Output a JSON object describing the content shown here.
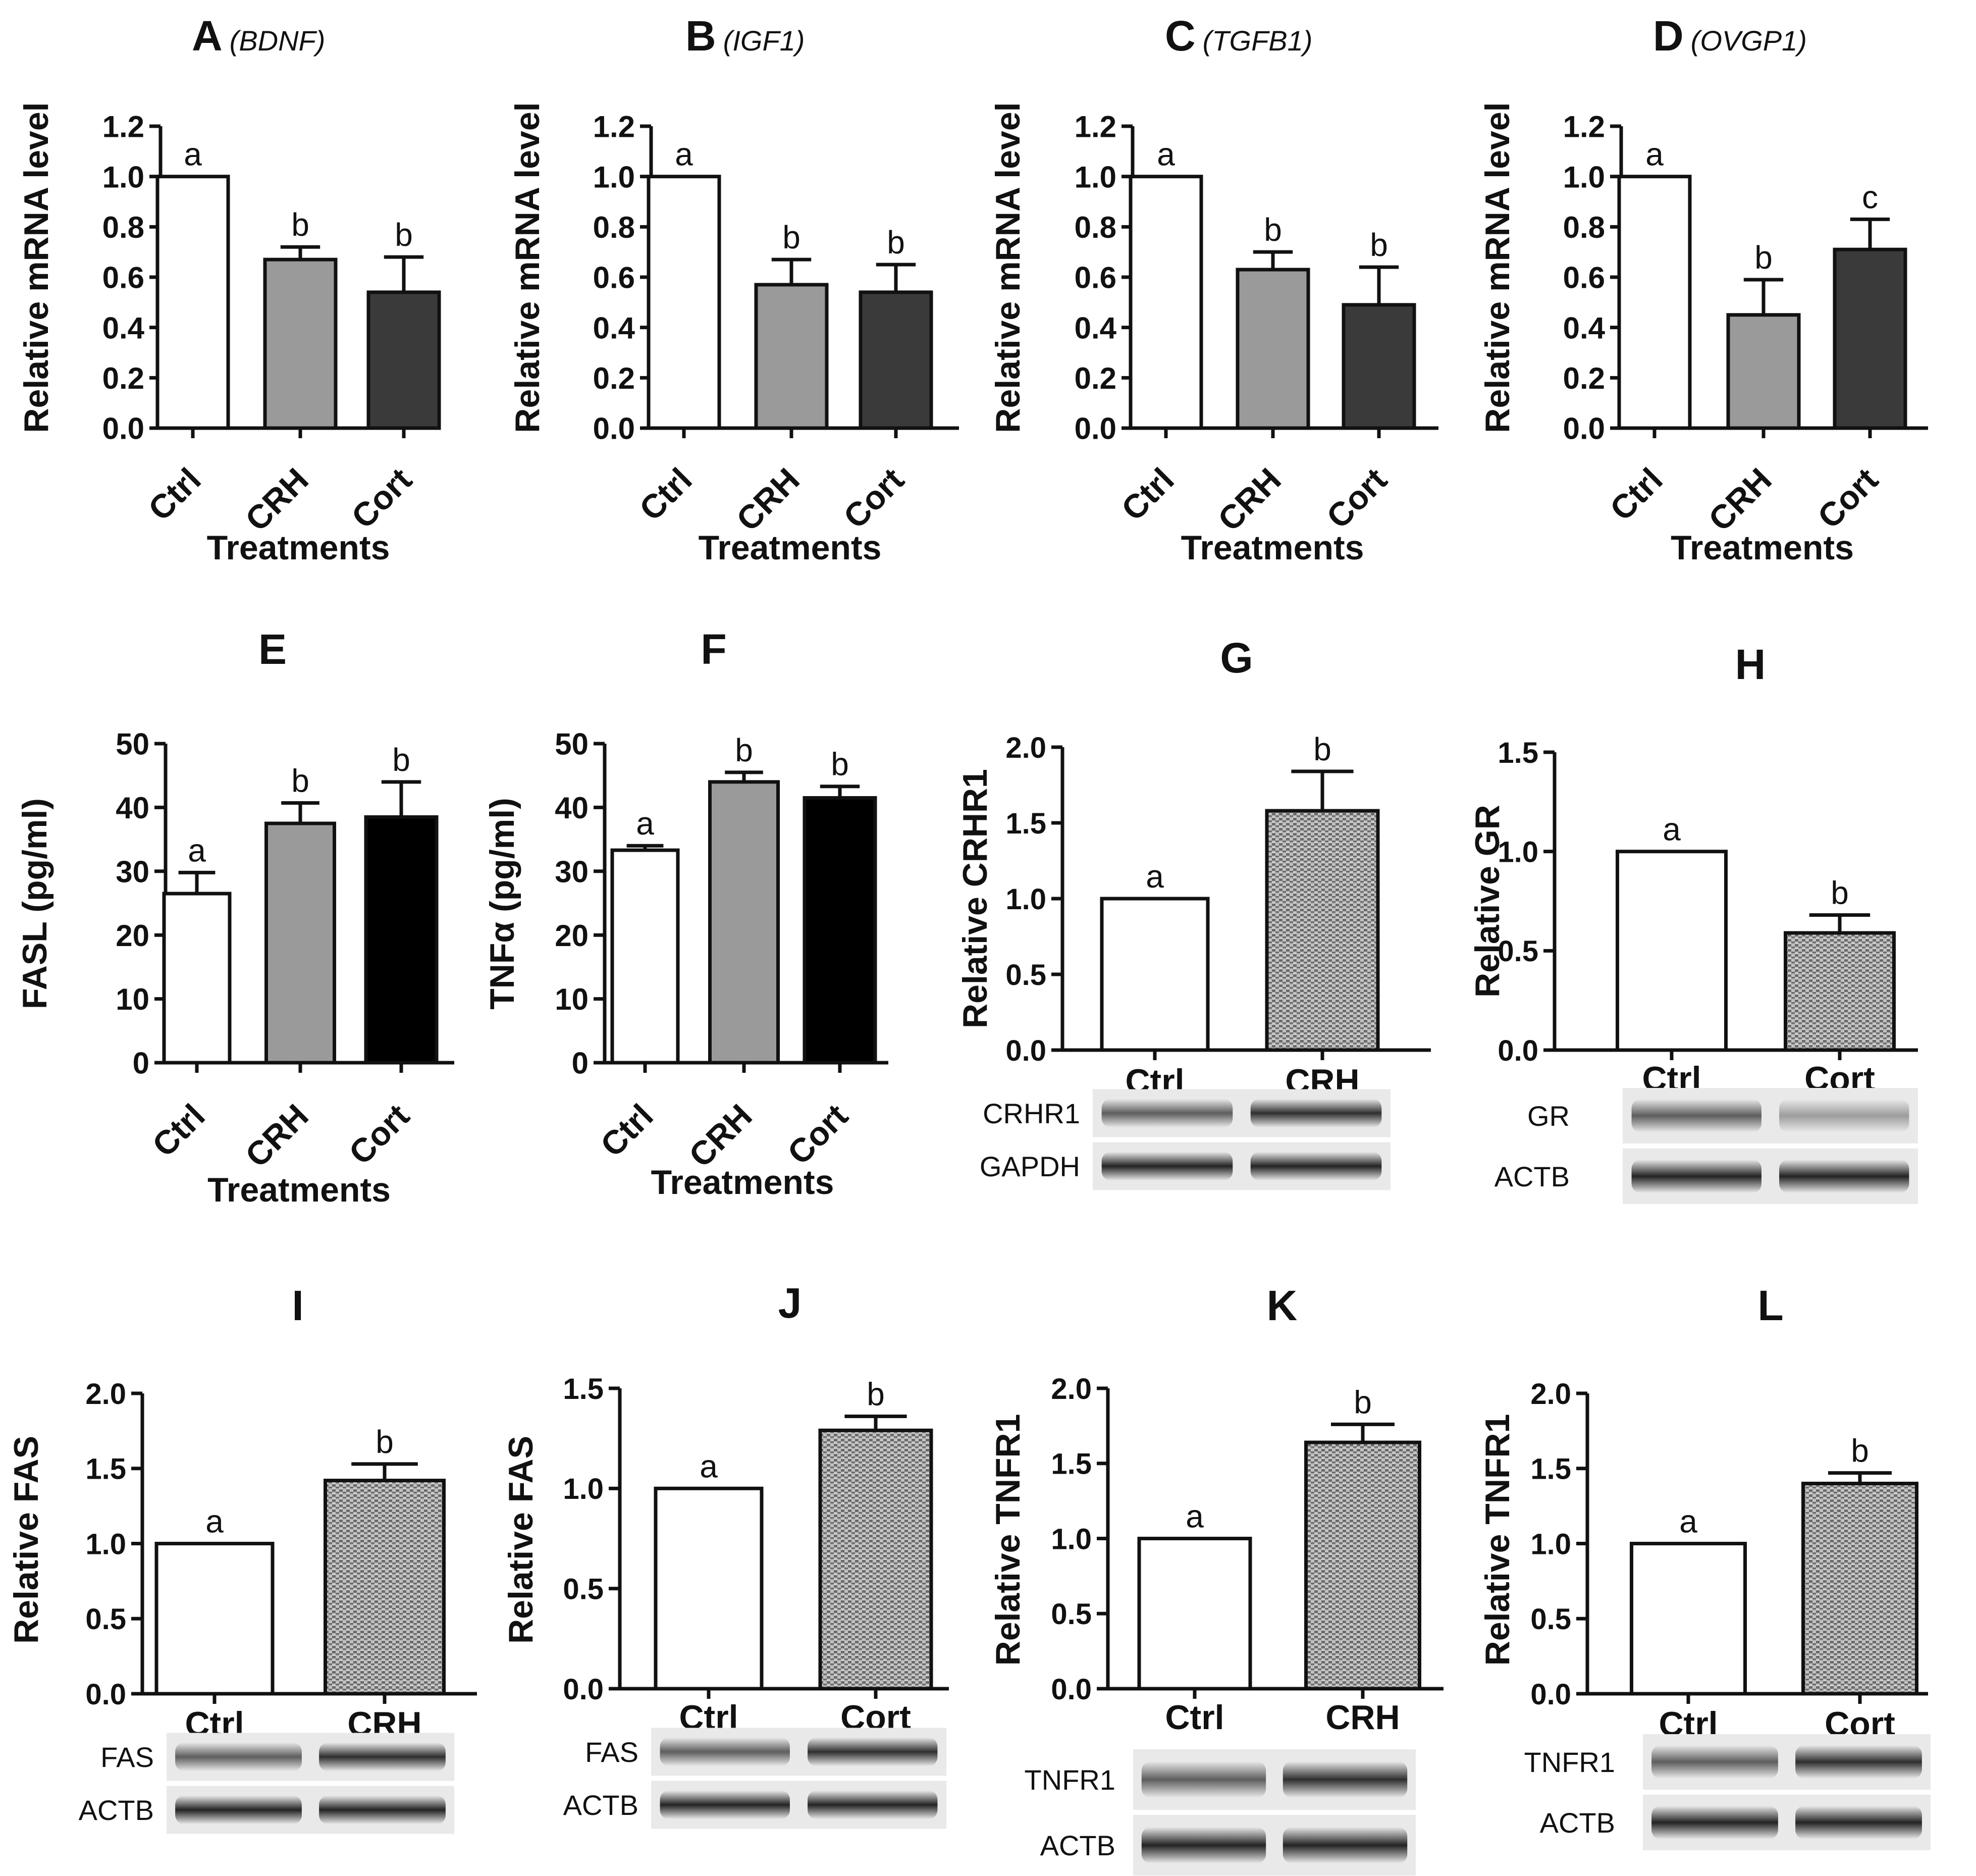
{
  "figure": {
    "ylabel_mrna": "Relative mRNA level",
    "xlabel_treatments": "Treatments"
  },
  "chart_data": [
    {
      "id": "A",
      "panel_label": "A",
      "gene": "(BDNF)",
      "type": "bar",
      "ylabel": "Relative mRNA level",
      "xlabel": "Treatments",
      "ylim": [
        0,
        1.2
      ],
      "ticks": [
        "0.0",
        "0.2",
        "0.4",
        "0.6",
        "0.8",
        "1.0",
        "1.2"
      ],
      "categories": [
        "Ctrl",
        "CRH",
        "Cort"
      ],
      "values": [
        1.0,
        0.67,
        0.54
      ],
      "errors": [
        0,
        0.05,
        0.14
      ],
      "letters": [
        "a",
        "b",
        "b"
      ],
      "colors": [
        "#ffffff",
        "#9a9a9a",
        "#3a3a3a"
      ],
      "rotate": true
    },
    {
      "id": "B",
      "panel_label": "B",
      "gene": "(IGF1)",
      "type": "bar",
      "ylabel": "Relative mRNA level",
      "xlabel": "Treatments",
      "ylim": [
        0,
        1.2
      ],
      "ticks": [
        "0.0",
        "0.2",
        "0.4",
        "0.6",
        "0.8",
        "1.0",
        "1.2"
      ],
      "categories": [
        "Ctrl",
        "CRH",
        "Cort"
      ],
      "values": [
        1.0,
        0.57,
        0.54
      ],
      "errors": [
        0,
        0.1,
        0.11
      ],
      "letters": [
        "a",
        "b",
        "b"
      ],
      "colors": [
        "#ffffff",
        "#9a9a9a",
        "#3a3a3a"
      ],
      "rotate": true
    },
    {
      "id": "C",
      "panel_label": "C",
      "gene": "(TGFB1)",
      "type": "bar",
      "ylabel": "Relative mRNA level",
      "xlabel": "Treatments",
      "ylim": [
        0,
        1.2
      ],
      "ticks": [
        "0.0",
        "0.2",
        "0.4",
        "0.6",
        "0.8",
        "1.0",
        "1.2"
      ],
      "categories": [
        "Ctrl",
        "CRH",
        "Cort"
      ],
      "values": [
        1.0,
        0.63,
        0.49
      ],
      "errors": [
        0,
        0.07,
        0.15
      ],
      "letters": [
        "a",
        "b",
        "b"
      ],
      "colors": [
        "#ffffff",
        "#9a9a9a",
        "#3a3a3a"
      ],
      "rotate": true
    },
    {
      "id": "D",
      "panel_label": "D",
      "gene": "(OVGP1)",
      "type": "bar",
      "ylabel": "Relative mRNA level",
      "xlabel": "Treatments",
      "ylim": [
        0,
        1.2
      ],
      "ticks": [
        "0.0",
        "0.2",
        "0.4",
        "0.6",
        "0.8",
        "1.0",
        "1.2"
      ],
      "categories": [
        "Ctrl",
        "CRH",
        "Cort"
      ],
      "values": [
        1.0,
        0.45,
        0.71
      ],
      "errors": [
        0,
        0.14,
        0.12
      ],
      "letters": [
        "a",
        "b",
        "c"
      ],
      "colors": [
        "#ffffff",
        "#9a9a9a",
        "#3a3a3a"
      ],
      "rotate": true
    },
    {
      "id": "E",
      "panel_label": "E",
      "gene": "",
      "type": "bar",
      "ylabel": "FASL (pg/ml)",
      "xlabel": "Treatments",
      "ylim": [
        0,
        50
      ],
      "ticks": [
        "0",
        "10",
        "20",
        "30",
        "40",
        "50"
      ],
      "categories": [
        "Ctrl",
        "CRH",
        "Cort"
      ],
      "values": [
        26.5,
        37.5,
        38.5
      ],
      "errors": [
        3.3,
        3.2,
        5.5
      ],
      "letters": [
        "a",
        "b",
        "b"
      ],
      "colors": [
        "#ffffff",
        "#9a9a9a",
        "#000000"
      ],
      "rotate": true
    },
    {
      "id": "F",
      "panel_label": "F",
      "gene": "",
      "type": "bar",
      "ylabel": "TNFα (pg/ml)",
      "xlabel": "Treatments",
      "ylim": [
        0,
        50
      ],
      "ticks": [
        "0",
        "10",
        "20",
        "30",
        "40",
        "50"
      ],
      "categories": [
        "Ctrl",
        "CRH",
        "Cort"
      ],
      "values": [
        33.3,
        44.0,
        41.5
      ],
      "errors": [
        0.7,
        1.5,
        1.8
      ],
      "letters": [
        "a",
        "b",
        "b"
      ],
      "colors": [
        "#ffffff",
        "#9a9a9a",
        "#000000"
      ],
      "rotate": true
    },
    {
      "id": "G",
      "panel_label": "G",
      "gene": "",
      "type": "bar",
      "ylabel": "Relative CRHR1",
      "xlabel": "",
      "ylim": [
        0,
        2.0
      ],
      "ticks": [
        "0.0",
        "0.5",
        "1.0",
        "1.5",
        "2.0"
      ],
      "categories": [
        "Ctrl",
        "CRH"
      ],
      "values": [
        1.0,
        1.58
      ],
      "errors": [
        0,
        0.26
      ],
      "letters": [
        "a",
        "b"
      ],
      "colors": [
        "#ffffff",
        "hatch"
      ],
      "rotate": false,
      "blots": [
        "CRHR1",
        "GAPDH"
      ]
    },
    {
      "id": "H",
      "panel_label": "H",
      "gene": "",
      "type": "bar",
      "ylabel": "Relative GR",
      "xlabel": "",
      "ylim": [
        0,
        1.5
      ],
      "ticks": [
        "0.0",
        "0.5",
        "1.0",
        "1.5"
      ],
      "categories": [
        "Ctrl",
        "Cort"
      ],
      "values": [
        1.0,
        0.59
      ],
      "errors": [
        0,
        0.09
      ],
      "letters": [
        "a",
        "b"
      ],
      "colors": [
        "#ffffff",
        "hatch"
      ],
      "rotate": false,
      "blots": [
        "GR",
        "ACTB"
      ]
    },
    {
      "id": "I",
      "panel_label": "I",
      "gene": "",
      "type": "bar",
      "ylabel": "Relative FAS",
      "xlabel": "",
      "ylim": [
        0,
        2.0
      ],
      "ticks": [
        "0.0",
        "0.5",
        "1.0",
        "1.5",
        "2.0"
      ],
      "categories": [
        "Ctrl",
        "CRH"
      ],
      "values": [
        1.0,
        1.42
      ],
      "errors": [
        0,
        0.11
      ],
      "letters": [
        "a",
        "b"
      ],
      "colors": [
        "#ffffff",
        "hatch"
      ],
      "rotate": false,
      "blots": [
        "FAS",
        "ACTB"
      ]
    },
    {
      "id": "J",
      "panel_label": "J",
      "gene": "",
      "type": "bar",
      "ylabel": "Relative FAS",
      "xlabel": "",
      "ylim": [
        0,
        1.5
      ],
      "ticks": [
        "0.0",
        "0.5",
        "1.0",
        "1.5"
      ],
      "categories": [
        "Ctrl",
        "Cort"
      ],
      "values": [
        1.0,
        1.29
      ],
      "errors": [
        0,
        0.07
      ],
      "letters": [
        "a",
        "b"
      ],
      "colors": [
        "#ffffff",
        "hatch"
      ],
      "rotate": false,
      "blots": [
        "FAS",
        "ACTB"
      ]
    },
    {
      "id": "K",
      "panel_label": "K",
      "gene": "",
      "type": "bar",
      "ylabel": "Relative TNFR1",
      "xlabel": "",
      "ylim": [
        0,
        2.0
      ],
      "ticks": [
        "0.0",
        "0.5",
        "1.0",
        "1.5",
        "2.0"
      ],
      "categories": [
        "Ctrl",
        "CRH"
      ],
      "values": [
        1.0,
        1.64
      ],
      "errors": [
        0,
        0.12
      ],
      "letters": [
        "a",
        "b"
      ],
      "colors": [
        "#ffffff",
        "hatch"
      ],
      "rotate": false,
      "blots": [
        "TNFR1",
        "ACTB"
      ]
    },
    {
      "id": "L",
      "panel_label": "L",
      "gene": "",
      "type": "bar",
      "ylabel": "Relative TNFR1",
      "xlabel": "",
      "ylim": [
        0,
        2.0
      ],
      "ticks": [
        "0.0",
        "0.5",
        "1.0",
        "1.5",
        "2.0"
      ],
      "categories": [
        "Ctrl",
        "Cort"
      ],
      "values": [
        1.0,
        1.4
      ],
      "errors": [
        0,
        0.07
      ],
      "letters": [
        "a",
        "b"
      ],
      "colors": [
        "#ffffff",
        "hatch"
      ],
      "rotate": false,
      "blots": [
        "TNFR1",
        "ACTB"
      ]
    }
  ]
}
